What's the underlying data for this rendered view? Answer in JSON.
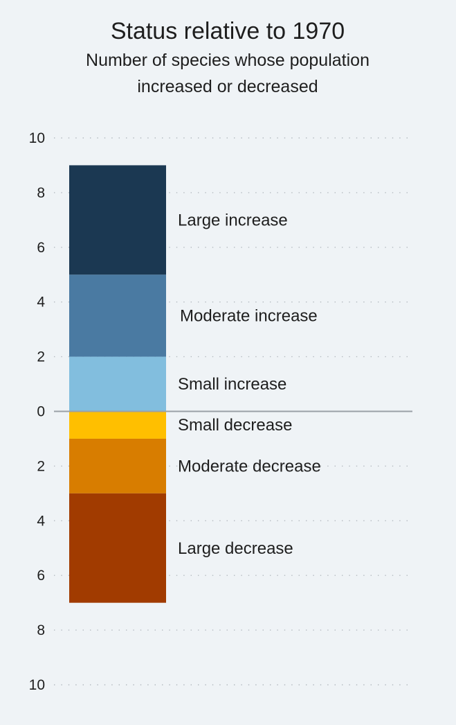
{
  "chart_data": {
    "type": "bar",
    "title": "Status relative to 1970",
    "subtitle": "Number of species whose population increased or decreased",
    "subtitle_lines": [
      "Number of species whose population",
      "increased or decreased"
    ],
    "orientation": "vertical-stacked-diverging",
    "axis": {
      "ylim": [
        -10,
        10
      ],
      "ticks": [
        {
          "value": 10,
          "label": "10"
        },
        {
          "value": 8,
          "label": "8"
        },
        {
          "value": 6,
          "label": "6"
        },
        {
          "value": 4,
          "label": "4"
        },
        {
          "value": 2,
          "label": "2"
        },
        {
          "value": 0,
          "label": "0"
        },
        {
          "value": -2,
          "label": "2"
        },
        {
          "value": -4,
          "label": "4"
        },
        {
          "value": -6,
          "label": "6"
        },
        {
          "value": -8,
          "label": "8"
        },
        {
          "value": -10,
          "label": "10"
        }
      ],
      "grid": true,
      "zero_line": true
    },
    "series": [
      {
        "name": "Small increase",
        "direction": "increase",
        "value": 2,
        "color": "#82bede"
      },
      {
        "name": "Moderate increase",
        "direction": "increase",
        "value": 3,
        "color": "#4a7aa2"
      },
      {
        "name": "Large increase",
        "direction": "increase",
        "value": 4,
        "color": "#1b3852"
      },
      {
        "name": "Small decrease",
        "direction": "decrease",
        "value": 1,
        "color": "#ffbf00"
      },
      {
        "name": "Moderate decrease",
        "direction": "decrease",
        "value": 2,
        "color": "#d87d00"
      },
      {
        "name": "Large decrease",
        "direction": "decrease",
        "value": 4,
        "color": "#a13b00"
      }
    ],
    "background_color": "#eff3f6"
  }
}
